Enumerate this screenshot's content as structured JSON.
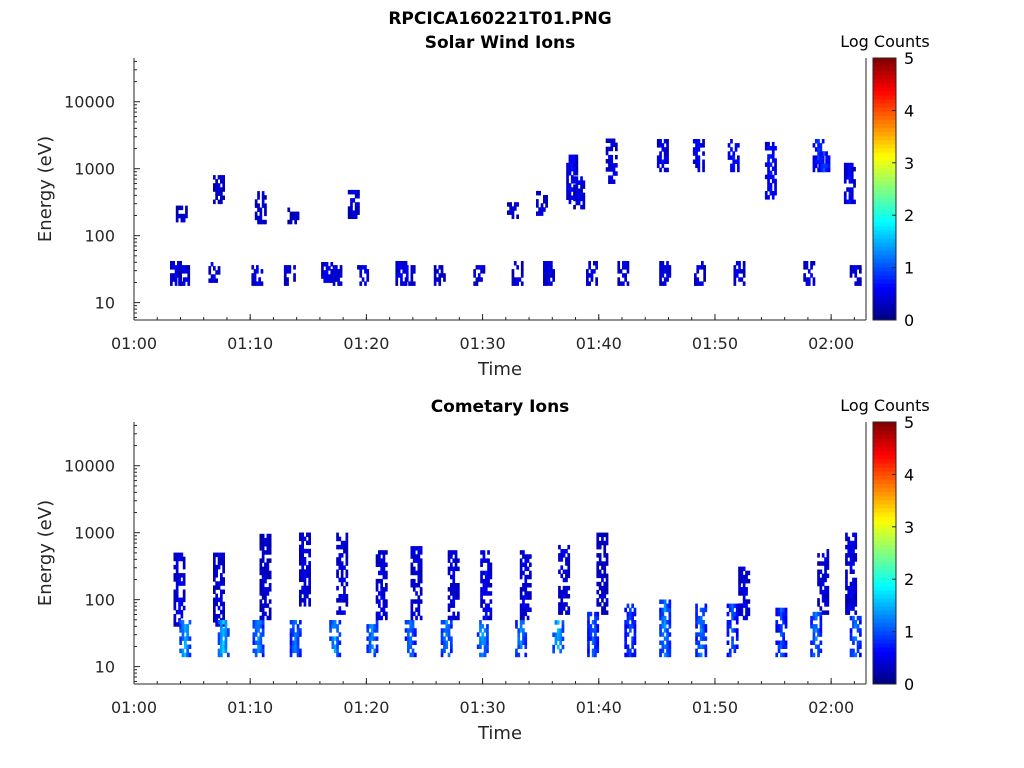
{
  "figure": {
    "title": "RPCICA160221T01.PNG"
  },
  "chart_data": [
    {
      "type": "heatmap",
      "title": "Solar Wind Ions",
      "xlabel": "Time",
      "ylabel": "Energy (eV)",
      "x_ticks": [
        "01:00",
        "01:10",
        "01:20",
        "01:30",
        "01:40",
        "01:50",
        "02:00"
      ],
      "x_tick_minutes": [
        0,
        10,
        20,
        30,
        40,
        50,
        60
      ],
      "xlim_minutes": [
        0,
        63
      ],
      "y_scale": "log",
      "y_ticks": [
        "10",
        "100",
        "1000",
        "10000"
      ],
      "y_tick_values": [
        10,
        100,
        1000,
        10000
      ],
      "ylim": [
        5.5,
        45000
      ],
      "colorbar": {
        "label": "Log Counts",
        "range": [
          0,
          5
        ],
        "ticks": [
          "0",
          "1",
          "2",
          "3",
          "4",
          "5"
        ],
        "colormap": "jet"
      },
      "grid": false,
      "blobs": [
        {
          "t": 3.5,
          "e0": 18,
          "e1": 38,
          "z": 0.5
        },
        {
          "t": 4.2,
          "e0": 18,
          "e1": 35,
          "z": 0.5
        },
        {
          "t": 4.0,
          "e0": 160,
          "e1": 260,
          "z": 0.4
        },
        {
          "t": 6.8,
          "e0": 20,
          "e1": 40,
          "z": 0.5
        },
        {
          "t": 7.2,
          "e0": 300,
          "e1": 700,
          "z": 0.4
        },
        {
          "t": 10.5,
          "e0": 18,
          "e1": 40,
          "z": 0.5
        },
        {
          "t": 10.8,
          "e0": 150,
          "e1": 450,
          "z": 0.4
        },
        {
          "t": 13.3,
          "e0": 18,
          "e1": 35,
          "z": 0.5
        },
        {
          "t": 13.6,
          "e0": 150,
          "e1": 260,
          "z": 0.4
        },
        {
          "t": 16.5,
          "e0": 20,
          "e1": 40,
          "z": 0.5
        },
        {
          "t": 17.3,
          "e0": 18,
          "e1": 35,
          "z": 0.5
        },
        {
          "t": 18.8,
          "e0": 180,
          "e1": 480,
          "z": 0.5
        },
        {
          "t": 19.6,
          "e0": 18,
          "e1": 36,
          "z": 0.5
        },
        {
          "t": 22.9,
          "e0": 18,
          "e1": 40,
          "z": 0.5
        },
        {
          "t": 23.6,
          "e0": 18,
          "e1": 36,
          "z": 0.5
        },
        {
          "t": 26.2,
          "e0": 18,
          "e1": 32,
          "z": 0.4
        },
        {
          "t": 29.6,
          "e0": 18,
          "e1": 36,
          "z": 0.5
        },
        {
          "t": 32.9,
          "e0": 18,
          "e1": 40,
          "z": 0.5
        },
        {
          "t": 32.5,
          "e0": 180,
          "e1": 300,
          "z": 0.4
        },
        {
          "t": 35.0,
          "e0": 200,
          "e1": 450,
          "z": 0.5
        },
        {
          "t": 35.6,
          "e0": 18,
          "e1": 40,
          "z": 0.5
        },
        {
          "t": 37.6,
          "e0": 300,
          "e1": 1500,
          "z": 0.6
        },
        {
          "t": 38.2,
          "e0": 250,
          "e1": 700,
          "z": 0.5
        },
        {
          "t": 39.3,
          "e0": 18,
          "e1": 40,
          "z": 0.5
        },
        {
          "t": 41.0,
          "e0": 600,
          "e1": 2500,
          "z": 0.5
        },
        {
          "t": 42.0,
          "e0": 18,
          "e1": 40,
          "z": 0.5
        },
        {
          "t": 45.4,
          "e0": 900,
          "e1": 2500,
          "z": 0.6
        },
        {
          "t": 45.6,
          "e0": 18,
          "e1": 40,
          "z": 0.5
        },
        {
          "t": 48.5,
          "e0": 900,
          "e1": 2500,
          "z": 0.6
        },
        {
          "t": 48.6,
          "e0": 18,
          "e1": 40,
          "z": 0.5
        },
        {
          "t": 51.5,
          "e0": 900,
          "e1": 2500,
          "z": 0.7
        },
        {
          "t": 52.0,
          "e0": 18,
          "e1": 40,
          "z": 0.5
        },
        {
          "t": 54.7,
          "e0": 350,
          "e1": 2500,
          "z": 0.7
        },
        {
          "t": 58.8,
          "e0": 900,
          "e1": 2600,
          "z": 0.8
        },
        {
          "t": 59.3,
          "e0": 900,
          "e1": 1600,
          "z": 0.9
        },
        {
          "t": 58.0,
          "e0": 18,
          "e1": 40,
          "z": 0.5
        },
        {
          "t": 61.5,
          "e0": 300,
          "e1": 1200,
          "z": 0.6
        },
        {
          "t": 62.0,
          "e0": 18,
          "e1": 36,
          "z": 0.5
        }
      ]
    },
    {
      "type": "heatmap",
      "title": "Cometary Ions",
      "xlabel": "Time",
      "ylabel": "Energy (eV)",
      "x_ticks": [
        "01:00",
        "01:10",
        "01:20",
        "01:30",
        "01:40",
        "01:50",
        "02:00"
      ],
      "x_tick_minutes": [
        0,
        10,
        20,
        30,
        40,
        50,
        60
      ],
      "xlim_minutes": [
        0,
        63
      ],
      "y_scale": "log",
      "y_ticks": [
        "10",
        "100",
        "1000",
        "10000"
      ],
      "y_tick_values": [
        10,
        100,
        1000,
        10000
      ],
      "ylim": [
        5.5,
        45000
      ],
      "colorbar": {
        "label": "Log Counts",
        "range": [
          0,
          5
        ],
        "ticks": [
          "0",
          "1",
          "2",
          "3",
          "4",
          "5"
        ],
        "colormap": "jet"
      },
      "grid": false,
      "blobs": [
        {
          "t": 3.8,
          "e0": 40,
          "e1": 500,
          "z": 0.5
        },
        {
          "t": 4.3,
          "e0": 14,
          "e1": 45,
          "z": 1.5
        },
        {
          "t": 7.2,
          "e0": 40,
          "e1": 450,
          "z": 0.5
        },
        {
          "t": 7.6,
          "e0": 14,
          "e1": 45,
          "z": 1.6
        },
        {
          "t": 10.6,
          "e0": 14,
          "e1": 45,
          "z": 1.3
        },
        {
          "t": 11.2,
          "e0": 50,
          "e1": 900,
          "z": 0.4
        },
        {
          "t": 13.8,
          "e0": 14,
          "e1": 45,
          "z": 1.2
        },
        {
          "t": 14.6,
          "e0": 80,
          "e1": 1000,
          "z": 0.5
        },
        {
          "t": 17.2,
          "e0": 14,
          "e1": 45,
          "z": 1.4
        },
        {
          "t": 17.8,
          "e0": 60,
          "e1": 900,
          "z": 0.5
        },
        {
          "t": 20.4,
          "e0": 14,
          "e1": 45,
          "z": 1.3
        },
        {
          "t": 21.2,
          "e0": 50,
          "e1": 500,
          "z": 0.5
        },
        {
          "t": 23.7,
          "e0": 14,
          "e1": 45,
          "z": 1.2
        },
        {
          "t": 24.2,
          "e0": 50,
          "e1": 600,
          "z": 0.5
        },
        {
          "t": 26.8,
          "e0": 14,
          "e1": 45,
          "z": 1.3
        },
        {
          "t": 27.4,
          "e0": 50,
          "e1": 500,
          "z": 0.5
        },
        {
          "t": 29.9,
          "e0": 14,
          "e1": 45,
          "z": 1.4
        },
        {
          "t": 30.2,
          "e0": 50,
          "e1": 500,
          "z": 0.6
        },
        {
          "t": 33.2,
          "e0": 14,
          "e1": 45,
          "z": 1.3
        },
        {
          "t": 33.6,
          "e0": 50,
          "e1": 500,
          "z": 0.5
        },
        {
          "t": 36.4,
          "e0": 16,
          "e1": 45,
          "z": 1.5
        },
        {
          "t": 36.9,
          "e0": 60,
          "e1": 600,
          "z": 0.5
        },
        {
          "t": 39.4,
          "e0": 14,
          "e1": 60,
          "z": 1.1
        },
        {
          "t": 40.2,
          "e0": 60,
          "e1": 1000,
          "z": 0.4
        },
        {
          "t": 42.6,
          "e0": 14,
          "e1": 80,
          "z": 1.0
        },
        {
          "t": 45.6,
          "e0": 14,
          "e1": 90,
          "z": 1.3
        },
        {
          "t": 48.7,
          "e0": 14,
          "e1": 80,
          "z": 1.2
        },
        {
          "t": 51.4,
          "e0": 14,
          "e1": 80,
          "z": 1.0
        },
        {
          "t": 52.4,
          "e0": 50,
          "e1": 300,
          "z": 0.5
        },
        {
          "t": 55.6,
          "e0": 14,
          "e1": 70,
          "z": 1.0
        },
        {
          "t": 58.6,
          "e0": 14,
          "e1": 60,
          "z": 1.2
        },
        {
          "t": 59.2,
          "e0": 60,
          "e1": 500,
          "z": 0.5
        },
        {
          "t": 62.0,
          "e0": 14,
          "e1": 50,
          "z": 1.2
        },
        {
          "t": 61.6,
          "e0": 60,
          "e1": 900,
          "z": 0.5
        }
      ]
    }
  ]
}
